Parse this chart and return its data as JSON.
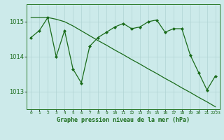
{
  "line1": [
    1014.55,
    1014.75,
    1015.12,
    1014.0,
    1014.75,
    1013.65,
    1013.25,
    1014.3,
    1014.55,
    1014.7,
    1014.85,
    1014.95,
    1014.8,
    1014.85,
    1015.0,
    1015.05,
    1014.7,
    1014.8,
    1014.8,
    1014.05,
    1013.55,
    1013.05,
    1013.45
  ],
  "line2": [
    1015.12,
    1015.12,
    1015.12,
    1015.07,
    1015.0,
    1014.88,
    1014.74,
    1014.6,
    1014.46,
    1014.33,
    1014.19,
    1014.06,
    1013.92,
    1013.79,
    1013.65,
    1013.52,
    1013.38,
    1013.25,
    1013.11,
    1012.98,
    1012.84,
    1012.71,
    1012.57
  ],
  "x": [
    0,
    1,
    2,
    3,
    4,
    5,
    6,
    7,
    8,
    9,
    10,
    11,
    12,
    13,
    14,
    15,
    16,
    17,
    18,
    19,
    20,
    21,
    22
  ],
  "xtick_labels": [
    "0",
    "1",
    "2",
    "3",
    "4",
    "5",
    "6",
    "7",
    "8",
    "9",
    "10",
    "11",
    "12",
    "13",
    "14",
    "15",
    "16",
    "17",
    "18",
    "19",
    "20",
    "21",
    "2223"
  ],
  "ylim": [
    1012.5,
    1015.5
  ],
  "yticks": [
    1013,
    1014,
    1015
  ],
  "xlabel": "Graphe pression niveau de la mer (hPa)",
  "line_color": "#1a6b1a",
  "bg_color": "#cceaea",
  "grid_color": "#b0d4d4",
  "spine_color": "#2a7a2a"
}
